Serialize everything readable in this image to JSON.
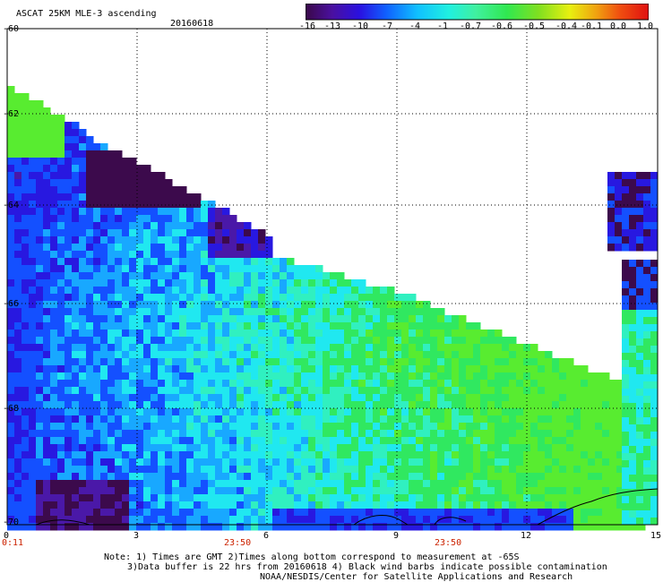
{
  "header": {
    "title": "ASCAT 25KM MLE-3 ascending",
    "date": "20160618"
  },
  "colorbar": {
    "labels": [
      "-16",
      "-13",
      "-10",
      "-7",
      "-4",
      "-1",
      "-0.7",
      "-0.6",
      "-0.5",
      "-0.4",
      "-0.1",
      "0.0",
      "1.0"
    ],
    "colors": [
      "#3a0848",
      "#4a10a0",
      "#2a10e0",
      "#1060ff",
      "#10c0ff",
      "#20f0e0",
      "#40f0a0",
      "#30e850",
      "#80e020",
      "#e8f010",
      "#f0a010",
      "#f05010",
      "#e01010"
    ]
  },
  "map": {
    "y_ticks": [
      "-60",
      "-62",
      "-64",
      "-66",
      "-68",
      "-70"
    ],
    "x_ticks": [
      "0",
      "3",
      "6",
      "9",
      "12",
      "15"
    ],
    "time_labels": [
      "0:11",
      "23:50",
      "23:50"
    ],
    "gridlines": true
  },
  "notes": {
    "line1": "Note: 1) Times are GMT 2)Times along bottom correspond to measurement at -65S",
    "line2": "3)Data buffer is 22 hrs from 20160618 4) Black wind barbs indicate possible contamination",
    "line3": "NOAA/NESDIS/Center for Satellite Applications and Research"
  }
}
